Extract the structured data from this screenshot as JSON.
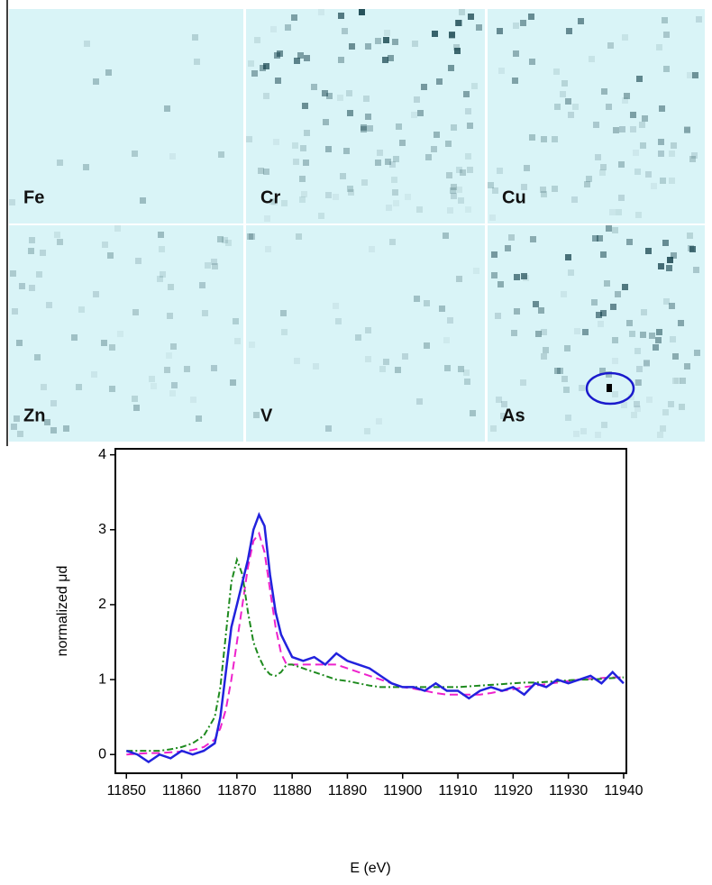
{
  "panels": [
    "Fe",
    "Cr",
    "Cu",
    "Zn",
    "V",
    "As"
  ],
  "chart_data": {
    "type": "line",
    "xlabel": "E (eV)",
    "ylabel": "normalized μd",
    "x": [
      11850,
      11852,
      11854,
      11856,
      11858,
      11860,
      11862,
      11864,
      11866,
      11867,
      11868,
      11869,
      11870,
      11871,
      11872,
      11873,
      11874,
      11875,
      11876,
      11877,
      11878,
      11879,
      11880,
      11882,
      11884,
      11886,
      11888,
      11890,
      11892,
      11894,
      11896,
      11898,
      11900,
      11902,
      11904,
      11906,
      11908,
      11910,
      11912,
      11914,
      11916,
      11918,
      11920,
      11922,
      11924,
      11926,
      11928,
      11930,
      11932,
      11934,
      11936,
      11938,
      11940
    ],
    "series": [
      {
        "color": "#2222dd",
        "linestyle": "solid",
        "values": [
          0.05,
          0.0,
          -0.1,
          0.0,
          -0.05,
          0.05,
          0.0,
          0.05,
          0.15,
          0.5,
          1.1,
          1.7,
          2.0,
          2.3,
          2.6,
          3.0,
          3.2,
          3.05,
          2.4,
          1.9,
          1.6,
          1.45,
          1.3,
          1.25,
          1.3,
          1.2,
          1.35,
          1.25,
          1.2,
          1.15,
          1.05,
          0.95,
          0.9,
          0.9,
          0.85,
          0.95,
          0.85,
          0.85,
          0.75,
          0.85,
          0.9,
          0.85,
          0.9,
          0.8,
          0.95,
          0.9,
          1.0,
          0.95,
          1.0,
          1.05,
          0.95,
          1.1,
          0.95
        ]
      },
      {
        "color": "#1e8a1e",
        "linestyle": "dashdot",
        "values": [
          0.05,
          0.05,
          0.05,
          0.05,
          0.07,
          0.1,
          0.15,
          0.25,
          0.5,
          0.9,
          1.6,
          2.3,
          2.6,
          2.4,
          1.9,
          1.5,
          1.3,
          1.15,
          1.07,
          1.05,
          1.1,
          1.2,
          1.2,
          1.15,
          1.1,
          1.05,
          1.0,
          0.98,
          0.95,
          0.92,
          0.9,
          0.9,
          0.9,
          0.9,
          0.9,
          0.9,
          0.9,
          0.9,
          0.91,
          0.92,
          0.93,
          0.94,
          0.95,
          0.96,
          0.96,
          0.97,
          0.98,
          0.99,
          1.0,
          1.0,
          1.01,
          1.02,
          1.03
        ]
      },
      {
        "color": "#ee22cc",
        "linestyle": "dashed",
        "values": [
          0.0,
          0.01,
          0.02,
          0.02,
          0.03,
          0.04,
          0.06,
          0.1,
          0.2,
          0.35,
          0.6,
          1.0,
          1.5,
          2.0,
          2.5,
          2.85,
          2.95,
          2.7,
          2.2,
          1.7,
          1.35,
          1.2,
          1.2,
          1.2,
          1.2,
          1.2,
          1.2,
          1.15,
          1.1,
          1.05,
          1.0,
          0.95,
          0.9,
          0.88,
          0.85,
          0.82,
          0.8,
          0.8,
          0.8,
          0.8,
          0.82,
          0.85,
          0.87,
          0.9,
          0.92,
          0.94,
          0.96,
          0.98,
          1.0,
          1.01,
          1.02,
          1.03,
          1.03
        ]
      }
    ],
    "xlim": [
      11848,
      11940.5
    ],
    "xticks": [
      11850,
      11860,
      11870,
      11880,
      11890,
      11900,
      11910,
      11920,
      11930,
      11940
    ],
    "ylim": [
      -0.25,
      4.08
    ],
    "yticks": [
      0,
      1,
      2,
      3,
      4
    ]
  }
}
